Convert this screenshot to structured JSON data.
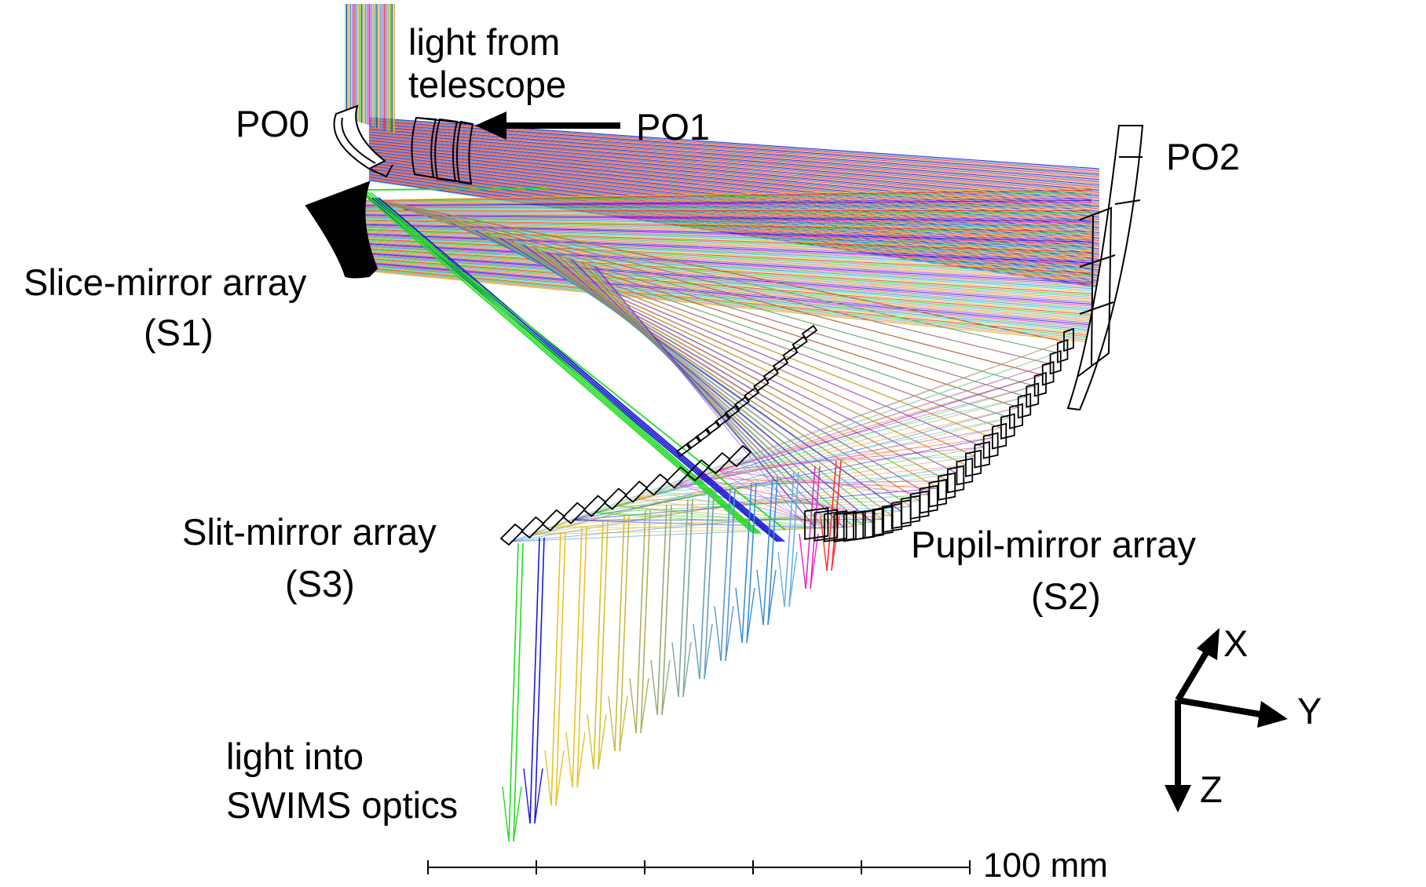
{
  "labels": {
    "light_from": "light from",
    "telescope": "telescope",
    "po0": "PO0",
    "po1": "PO1",
    "po2": "PO2",
    "slice_mirror": "Slice-mirror array",
    "s1": "(S1)",
    "slit_mirror": "Slit-mirror array",
    "s3": "(S3)",
    "pupil_mirror": "Pupil-mirror array",
    "s2": "(S2)",
    "light_into": "light into",
    "swims_optics": "SWIMS optics"
  },
  "axes": {
    "x": "X",
    "y": "Y",
    "z": "Z"
  },
  "scale_bar": {
    "label": "100 mm",
    "length_mm": 100,
    "ticks": 6
  },
  "ray_colors": [
    "#22dd22",
    "#1a1ad6",
    "#e8c22a",
    "#c8b030",
    "#3a8fd6",
    "#6ab0e0",
    "#e02ad0",
    "#ff3030",
    "#9a40ff",
    "#30d0d0",
    "#ff8a3a",
    "#8ab048"
  ]
}
